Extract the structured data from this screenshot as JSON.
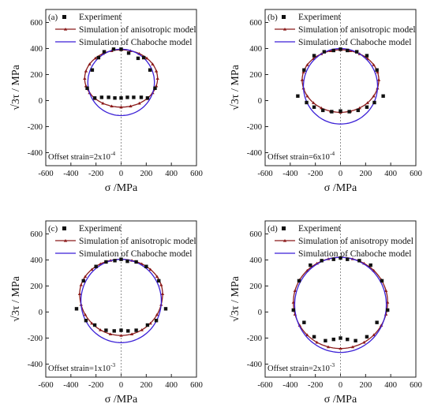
{
  "figure": {
    "ticks": [
      "-600",
      "-400",
      "-200",
      "0",
      "200",
      "400",
      "600"
    ],
    "xlabel": "σ /MPa",
    "ylabel": "√3τ / MPa",
    "colors": {
      "experiment": "#111111",
      "anisotropic": "#8b1a1a",
      "chaboche": "#3a1fd6",
      "frame": "#222222",
      "axis_line": "#777777"
    }
  },
  "chart_data": [
    {
      "type": "scatter",
      "panel_label": "(a)",
      "offset_strain_text": "Offset strain=2x10",
      "offset_strain_exp": "-4",
      "xlabel": "σ /MPa",
      "ylabel": "√3τ / MPa",
      "xlim": [
        -600,
        600
      ],
      "ylim": [
        -500,
        700
      ],
      "ticks": [
        -600,
        -400,
        -200,
        0,
        200,
        400,
        600
      ],
      "legend": [
        "Experiment",
        "Simulation of anisotropic model",
        "Simulation of Chaboche model"
      ],
      "series": [
        {
          "name": "Experiment",
          "kind": "points",
          "x": [
            -270,
            -230,
            -180,
            -135,
            -60,
            0,
            60,
            135,
            180,
            230,
            270,
            -210,
            -155,
            -100,
            -50,
            0,
            50,
            100,
            160,
            210
          ],
          "y": [
            95,
            235,
            330,
            375,
            395,
            395,
            365,
            325,
            330,
            235,
            95,
            20,
            25,
            25,
            20,
            20,
            25,
            25,
            25,
            20
          ]
        },
        {
          "name": "Simulation of anisotropic model",
          "kind": "curve",
          "center": [
            0,
            170
          ],
          "rx": 290,
          "ry_upper": 220,
          "ry_lower": 220
        },
        {
          "name": "Simulation of Chaboche model",
          "kind": "curve",
          "center": [
            0,
            140
          ],
          "rx": 265,
          "ry_upper": 255,
          "ry_lower": 255
        }
      ]
    },
    {
      "type": "scatter",
      "panel_label": "(b)",
      "offset_strain_text": "Offset strain=6x10",
      "offset_strain_exp": "-4",
      "xlabel": "σ /MPa",
      "ylabel": "√3τ / MPa",
      "xlim": [
        -600,
        600
      ],
      "ylim": [
        -500,
        700
      ],
      "ticks": [
        -600,
        -400,
        -200,
        0,
        200,
        400,
        600
      ],
      "legend": [
        "Experiment",
        "Simulation of anisotropic model",
        "Simulation of Chaboche model"
      ],
      "series": [
        {
          "name": "Experiment",
          "kind": "points",
          "x": [
            -340,
            -290,
            -210,
            -130,
            -55,
            0,
            55,
            130,
            210,
            290,
            340,
            -270,
            -210,
            -140,
            -70,
            0,
            70,
            140,
            210,
            270
          ],
          "y": [
            35,
            235,
            345,
            375,
            385,
            395,
            385,
            375,
            345,
            235,
            35,
            -15,
            -50,
            -75,
            -85,
            -80,
            -85,
            -75,
            -50,
            -15
          ]
        },
        {
          "name": "Simulation of anisotropic model",
          "kind": "curve",
          "center": [
            0,
            160
          ],
          "rx": 305,
          "ry_upper": 230,
          "ry_lower": 250
        },
        {
          "name": "Simulation of Chaboche model",
          "kind": "curve",
          "center": [
            0,
            110
          ],
          "rx": 295,
          "ry_upper": 290,
          "ry_lower": 290
        }
      ]
    },
    {
      "type": "scatter",
      "panel_label": "(c)",
      "offset_strain_text": "Offset strain=1x10",
      "offset_strain_exp": "-3",
      "xlabel": "σ /MPa",
      "ylabel": "√3τ / MPa",
      "xlim": [
        -600,
        600
      ],
      "ylim": [
        -500,
        700
      ],
      "ticks": [
        -600,
        -400,
        -200,
        0,
        200,
        400,
        600
      ],
      "legend": [
        "Experiment",
        "Simulation of anisotropic model",
        "Simulation of Chaboche model"
      ],
      "series": [
        {
          "name": "Experiment",
          "kind": "points",
          "x": [
            -355,
            -300,
            -200,
            -120,
            -50,
            0,
            50,
            120,
            200,
            300,
            355,
            -280,
            -210,
            -120,
            -55,
            0,
            55,
            120,
            210,
            280
          ],
          "y": [
            25,
            240,
            350,
            385,
            395,
            405,
            390,
            385,
            350,
            240,
            25,
            -65,
            -100,
            -140,
            -145,
            -140,
            -145,
            -140,
            -100,
            -65
          ]
        },
        {
          "name": "Simulation of anisotropic model",
          "kind": "curve",
          "center": [
            0,
            140
          ],
          "rx": 330,
          "ry_upper": 265,
          "ry_lower": 320
        },
        {
          "name": "Simulation of Chaboche model",
          "kind": "curve",
          "center": [
            0,
            85
          ],
          "rx": 320,
          "ry_upper": 320,
          "ry_lower": 320
        }
      ]
    },
    {
      "type": "scatter",
      "panel_label": "(d)",
      "offset_strain_text": "Offset strain=2x10",
      "offset_strain_exp": "-3",
      "xlabel": "σ /MPa",
      "ylabel": "√3τ / MPa",
      "xlim": [
        -600,
        600
      ],
      "ylim": [
        -500,
        700
      ],
      "ticks": [
        -600,
        -400,
        -200,
        0,
        200,
        400,
        600
      ],
      "legend": [
        "Experiment",
        "Simulation of anisotropy model",
        "Simulation of Chaboche model"
      ],
      "series": [
        {
          "name": "Experiment",
          "kind": "points",
          "x": [
            -375,
            -330,
            -240,
            -150,
            -55,
            0,
            55,
            150,
            240,
            330,
            375,
            -290,
            -210,
            -120,
            -55,
            0,
            55,
            120,
            210,
            290
          ],
          "y": [
            15,
            240,
            360,
            395,
            405,
            415,
            405,
            395,
            360,
            240,
            15,
            -80,
            -190,
            -220,
            -210,
            -200,
            -210,
            -220,
            -190,
            -80
          ]
        },
        {
          "name": "Simulation of anisotropy model",
          "kind": "curve",
          "center": [
            0,
            75
          ],
          "rx": 375,
          "ry_upper": 345,
          "ry_lower": 355
        },
        {
          "name": "Simulation of Chaboche model",
          "kind": "curve",
          "center": [
            0,
            55
          ],
          "rx": 365,
          "ry_upper": 365,
          "ry_lower": 365
        }
      ]
    }
  ]
}
